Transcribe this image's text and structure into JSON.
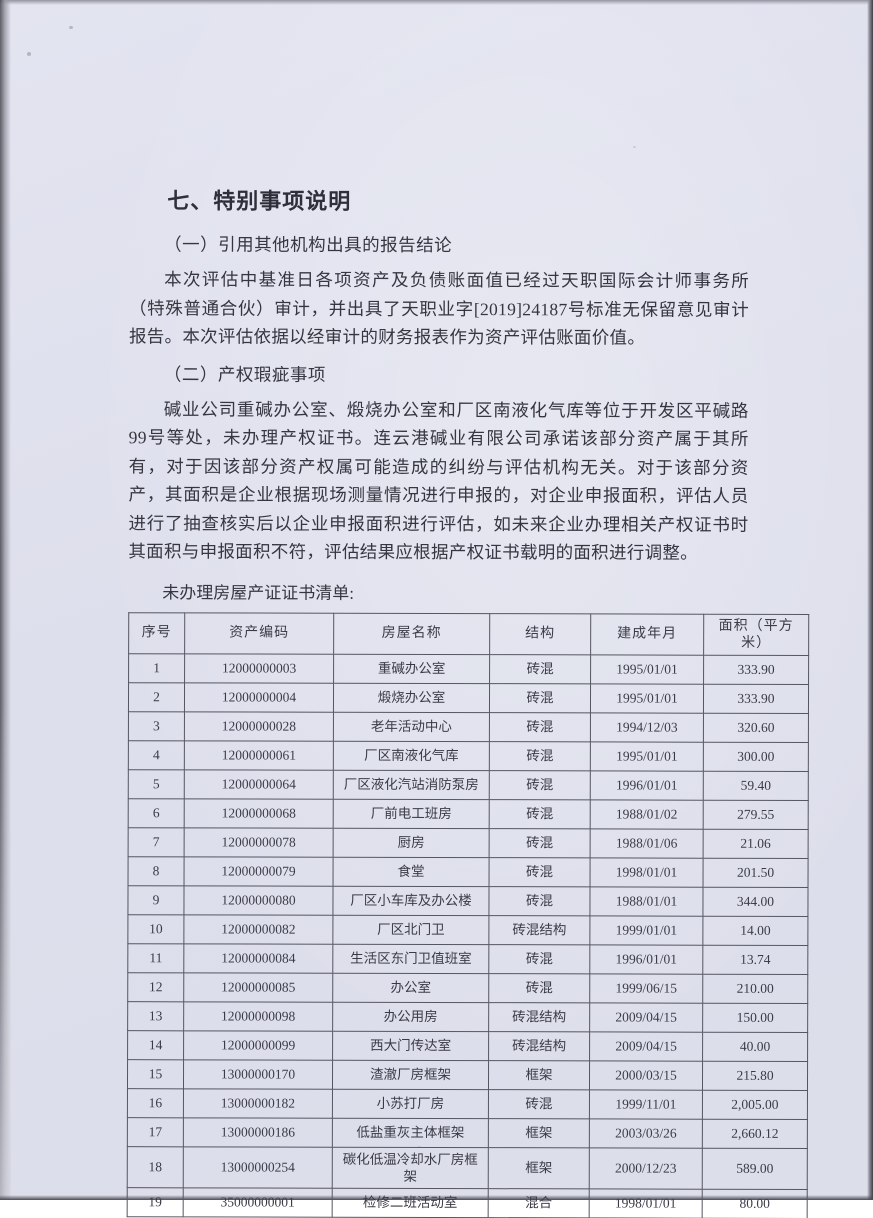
{
  "doc": {
    "title": "七、特别事项说明",
    "sections": [
      {
        "heading": "（一）引用其他机构出具的报告结论",
        "paragraph": "本次评估中基准日各项资产及负债账面值已经过天职国际会计师事务所（特殊普通合伙）审计，并出具了天职业字[2019]24187号标准无保留意见审计报告。本次评估依据以经审计的财务报表作为资产评估账面价值。"
      },
      {
        "heading": "（二）产权瑕疵事项",
        "paragraph": "碱业公司重碱办公室、煅烧办公室和厂区南液化气库等位于开发区平碱路99号等处，未办理产权证书。连云港碱业有限公司承诺该部分资产属于其所有，对于因该部分资产权属可能造成的纠纷与评估机构无关。对于该部分资产，其面积是企业根据现场测量情况进行申报的，对企业申报面积，评估人员进行了抽查核实后以企业申报面积进行评估，如未来企业办理相关产权证书时其面积与申报面积不符，评估结果应根据产权证书载明的面积进行调整。"
      }
    ],
    "table_caption": "未办理房屋产证证书清单:",
    "table": {
      "headers": [
        "序号",
        "资产编码",
        "房屋名称",
        "结构",
        "建成年月",
        "面积（平方米）"
      ],
      "rows": [
        [
          "1",
          "12000000003",
          "重碱办公室",
          "砖混",
          "1995/01/01",
          "333.90"
        ],
        [
          "2",
          "12000000004",
          "煅烧办公室",
          "砖混",
          "1995/01/01",
          "333.90"
        ],
        [
          "3",
          "12000000028",
          "老年活动中心",
          "砖混",
          "1994/12/03",
          "320.60"
        ],
        [
          "4",
          "12000000061",
          "厂区南液化气库",
          "砖混",
          "1995/01/01",
          "300.00"
        ],
        [
          "5",
          "12000000064",
          "厂区液化汽站消防泵房",
          "砖混",
          "1996/01/01",
          "59.40"
        ],
        [
          "6",
          "12000000068",
          "厂前电工班房",
          "砖混",
          "1988/01/02",
          "279.55"
        ],
        [
          "7",
          "12000000078",
          "厨房",
          "砖混",
          "1988/01/06",
          "21.06"
        ],
        [
          "8",
          "12000000079",
          "食堂",
          "砖混",
          "1998/01/01",
          "201.50"
        ],
        [
          "9",
          "12000000080",
          "厂区小车库及办公楼",
          "砖混",
          "1988/01/01",
          "344.00"
        ],
        [
          "10",
          "12000000082",
          "厂区北门卫",
          "砖混结构",
          "1999/01/01",
          "14.00"
        ],
        [
          "11",
          "12000000084",
          "生活区东门卫值班室",
          "砖混",
          "1996/01/01",
          "13.74"
        ],
        [
          "12",
          "12000000085",
          "办公室",
          "砖混",
          "1999/06/15",
          "210.00"
        ],
        [
          "13",
          "12000000098",
          "办公用房",
          "砖混结构",
          "2009/04/15",
          "150.00"
        ],
        [
          "14",
          "12000000099",
          "西大门传达室",
          "砖混结构",
          "2009/04/15",
          "40.00"
        ],
        [
          "15",
          "13000000170",
          "渣澈厂房框架",
          "框架",
          "2000/03/15",
          "215.80"
        ],
        [
          "16",
          "13000000182",
          "小苏打厂房",
          "砖混",
          "1999/11/01",
          "2,005.00"
        ],
        [
          "17",
          "13000000186",
          "低盐重灰主体框架",
          "框架",
          "2003/03/26",
          "2,660.12"
        ],
        [
          "18",
          "13000000254",
          "碳化低温冷却水厂房框架",
          "框架",
          "2000/12/23",
          "589.00"
        ],
        [
          "19",
          "35000000001",
          "检修二班活动室",
          "混合",
          "1998/01/01",
          "80.00"
        ]
      ]
    },
    "colors": {
      "paper": "#dfe1ec",
      "ink": "#35363f",
      "table_border": "#565662"
    }
  }
}
